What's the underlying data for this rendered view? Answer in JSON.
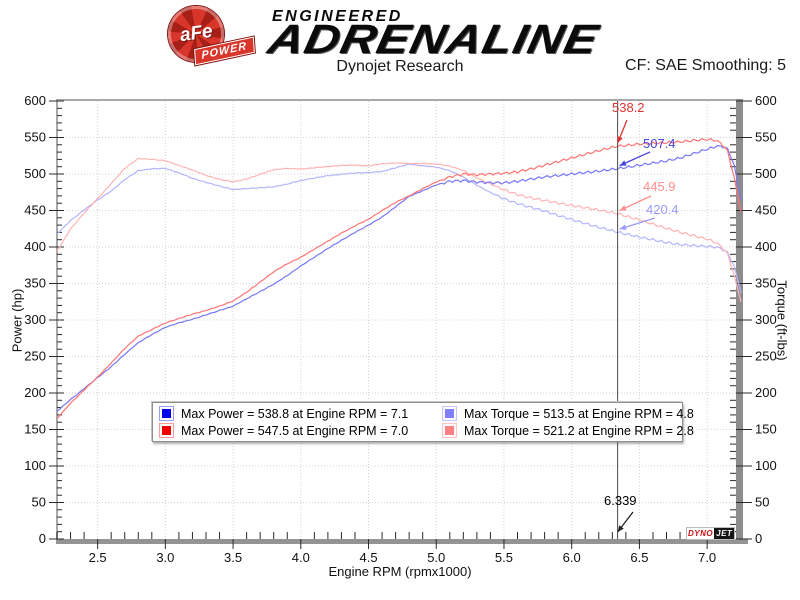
{
  "header": {
    "badge_line1": "aFe",
    "badge_line2": "POWER",
    "brand_engineered": "ENGINEERED",
    "brand_adrenaline": "ADRENALINE",
    "title": "Dynojet Research",
    "correction": "CF: SAE Smoothing: 5"
  },
  "chart_data": {
    "type": "line",
    "title": "Dynojet Research",
    "xlabel": "Engine RPM (rpmx1000)",
    "ylabel_left": "Power (hp)",
    "ylabel_right": "Torque (ft-lbs)",
    "xlim": [
      2.2,
      7.25
    ],
    "ylim": [
      0,
      600
    ],
    "x_major_ticks": [
      2.5,
      3.0,
      3.5,
      4.0,
      4.5,
      5.0,
      5.5,
      6.0,
      6.5,
      7.0
    ],
    "x_minor_step": 0.1,
    "y_major_ticks": [
      0,
      50,
      100,
      150,
      200,
      250,
      300,
      350,
      400,
      450,
      500,
      550,
      600
    ],
    "y_minor_step": 10,
    "grid": "dotted-major",
    "legend_position": "bottom-center",
    "cursor": {
      "rpm": 6.339,
      "label": "6.339"
    },
    "callouts": [
      {
        "label": "538.2",
        "value": 538.2,
        "series": "power_red",
        "color": "#e03232"
      },
      {
        "label": "507.4",
        "value": 507.4,
        "series": "power_blue",
        "color": "#4747dd"
      },
      {
        "label": "445.9",
        "value": 445.9,
        "series": "torque_red",
        "color": "#ff8d8d"
      },
      {
        "label": "420.4",
        "value": 420.4,
        "series": "torque_blue",
        "color": "#9a9aff"
      }
    ],
    "legend": [
      {
        "swatch": "#0000ee",
        "border": "#9a9aff",
        "text": "Max Power = 538.8 at Engine RPM = 7.1"
      },
      {
        "swatch": "#ee0000",
        "border": "#ff9a9a",
        "text": "Max Power = 547.5 at Engine RPM = 7.0"
      },
      {
        "swatch": "#8080ff",
        "border": "#c3c3ff",
        "text": "Max Torque = 513.5 at Engine RPM = 4.8"
      },
      {
        "swatch": "#ff8080",
        "border": "#ffc3c3",
        "text": "Max Torque = 521.2 at Engine RPM = 2.8"
      }
    ],
    "series": [
      {
        "id": "torque_blue",
        "color": "#b4b4ff",
        "axis": "torque",
        "ripple_from": 5.45,
        "points": [
          [
            2.2,
            417.8
          ],
          [
            2.3,
            436.2
          ],
          [
            2.4,
            450.8
          ],
          [
            2.5,
            464.3
          ],
          [
            2.6,
            476.7
          ],
          [
            2.7,
            492.2
          ],
          [
            2.8,
            504.6
          ],
          [
            2.9,
            507.1
          ],
          [
            3.0,
            507.7
          ],
          [
            3.1,
            501.5
          ],
          [
            3.2,
            494.1
          ],
          [
            3.3,
            488.6
          ],
          [
            3.4,
            483.5
          ],
          [
            3.5,
            478.7
          ],
          [
            3.6,
            480.0
          ],
          [
            3.7,
            481.2
          ],
          [
            3.8,
            482.4
          ],
          [
            3.9,
            486.2
          ],
          [
            4.0,
            491.1
          ],
          [
            4.1,
            494.5
          ],
          [
            4.2,
            497.7
          ],
          [
            4.3,
            499.6
          ],
          [
            4.4,
            501.4
          ],
          [
            4.5,
            501.9
          ],
          [
            4.6,
            503.5
          ],
          [
            4.7,
            508.5
          ],
          [
            4.8,
            513.5
          ],
          [
            4.9,
            511.3
          ],
          [
            5.0,
            509.4
          ],
          [
            5.1,
            504.6
          ],
          [
            5.2,
            495.9
          ],
          [
            5.3,
            484.6
          ],
          [
            5.4,
            474.6
          ],
          [
            5.5,
            466.0
          ],
          [
            5.6,
            459.5
          ],
          [
            5.7,
            454.3
          ],
          [
            5.8,
            449.2
          ],
          [
            5.9,
            443.2
          ],
          [
            6.0,
            437.7
          ],
          [
            6.1,
            432.2
          ],
          [
            6.2,
            427.0
          ],
          [
            6.339,
            420.4
          ],
          [
            6.4,
            417.7
          ],
          [
            6.5,
            413.7
          ],
          [
            6.6,
            409.9
          ],
          [
            6.7,
            406.1
          ],
          [
            6.8,
            403.2
          ],
          [
            6.9,
            401.9
          ],
          [
            7.0,
            400.8
          ],
          [
            7.05,
            400.1
          ],
          [
            7.1,
            398.6
          ],
          [
            7.15,
            393.0
          ],
          [
            7.2,
            373.5
          ],
          [
            7.25,
            336.9
          ]
        ]
      },
      {
        "id": "torque_red",
        "color": "#ffb4b4",
        "axis": "torque",
        "ripple_from": 5.45,
        "points": [
          [
            2.2,
            393.9
          ],
          [
            2.3,
            424.7
          ],
          [
            2.4,
            446.4
          ],
          [
            2.5,
            466.4
          ],
          [
            2.6,
            486.8
          ],
          [
            2.7,
            507.7
          ],
          [
            2.8,
            521.2
          ],
          [
            2.9,
            520.1
          ],
          [
            3.0,
            518.2
          ],
          [
            3.1,
            511.7
          ],
          [
            3.2,
            505.5
          ],
          [
            3.3,
            498.1
          ],
          [
            3.4,
            492.7
          ],
          [
            3.5,
            489.2
          ],
          [
            3.6,
            493.1
          ],
          [
            3.7,
            499.7
          ],
          [
            3.8,
            505.8
          ],
          [
            3.9,
            507.7
          ],
          [
            4.0,
            506.8
          ],
          [
            4.1,
            508.5
          ],
          [
            4.2,
            510.2
          ],
          [
            4.3,
            511.8
          ],
          [
            4.4,
            512.1
          ],
          [
            4.5,
            511.2
          ],
          [
            4.6,
            513.8
          ],
          [
            4.7,
            515.2
          ],
          [
            4.8,
            514.3
          ],
          [
            4.9,
            514.5
          ],
          [
            5.0,
            513.6
          ],
          [
            5.1,
            510.8
          ],
          [
            5.2,
            505.0
          ],
          [
            5.3,
            494.5
          ],
          [
            5.4,
            486.4
          ],
          [
            5.5,
            478.4
          ],
          [
            5.6,
            471.7
          ],
          [
            5.7,
            467.2
          ],
          [
            5.8,
            463.7
          ],
          [
            5.9,
            460.2
          ],
          [
            6.0,
            456.9
          ],
          [
            6.1,
            453.8
          ],
          [
            6.2,
            450.7
          ],
          [
            6.339,
            445.9
          ],
          [
            6.4,
            442.3
          ],
          [
            6.5,
            437.2
          ],
          [
            6.6,
            431.3
          ],
          [
            6.7,
            425.7
          ],
          [
            6.8,
            420.2
          ],
          [
            6.9,
            415.6
          ],
          [
            7.0,
            410.8
          ],
          [
            7.05,
            407.2
          ],
          [
            7.1,
            401.7
          ],
          [
            7.15,
            390.8
          ],
          [
            7.2,
            361.1
          ],
          [
            7.25,
            324.6
          ]
        ]
      },
      {
        "id": "power_blue",
        "color": "#7878f6",
        "axis": "power",
        "ripple_from": 5.05,
        "points": [
          [
            2.2,
            175
          ],
          [
            2.3,
            191
          ],
          [
            2.4,
            206
          ],
          [
            2.5,
            221
          ],
          [
            2.6,
            236
          ],
          [
            2.7,
            253
          ],
          [
            2.8,
            269
          ],
          [
            2.9,
            280
          ],
          [
            3.0,
            290
          ],
          [
            3.1,
            296
          ],
          [
            3.2,
            301
          ],
          [
            3.3,
            307
          ],
          [
            3.4,
            313
          ],
          [
            3.5,
            319
          ],
          [
            3.6,
            329
          ],
          [
            3.7,
            339
          ],
          [
            3.8,
            349
          ],
          [
            3.9,
            361
          ],
          [
            4.0,
            374
          ],
          [
            4.1,
            386
          ],
          [
            4.2,
            398
          ],
          [
            4.3,
            409
          ],
          [
            4.4,
            420
          ],
          [
            4.5,
            430
          ],
          [
            4.6,
            441
          ],
          [
            4.7,
            455
          ],
          [
            4.8,
            469.3
          ],
          [
            4.9,
            477
          ],
          [
            5.0,
            485
          ],
          [
            5.1,
            490
          ],
          [
            5.2,
            491
          ],
          [
            5.3,
            489
          ],
          [
            5.4,
            488
          ],
          [
            5.5,
            488
          ],
          [
            5.6,
            490
          ],
          [
            5.7,
            493
          ],
          [
            5.8,
            496
          ],
          [
            5.9,
            498
          ],
          [
            6.0,
            500
          ],
          [
            6.1,
            502
          ],
          [
            6.2,
            504
          ],
          [
            6.339,
            507.4
          ],
          [
            6.4,
            509
          ],
          [
            6.5,
            512
          ],
          [
            6.6,
            515
          ],
          [
            6.7,
            518
          ],
          [
            6.8,
            522
          ],
          [
            6.9,
            528
          ],
          [
            7.0,
            534
          ],
          [
            7.05,
            537
          ],
          [
            7.1,
            538.8
          ],
          [
            7.15,
            535
          ],
          [
            7.2,
            512
          ],
          [
            7.25,
            465
          ]
        ]
      },
      {
        "id": "power_red",
        "color": "#ff7474",
        "axis": "power",
        "ripple_from": 5.05,
        "points": [
          [
            2.2,
            165
          ],
          [
            2.3,
            186
          ],
          [
            2.4,
            204
          ],
          [
            2.5,
            222
          ],
          [
            2.6,
            241
          ],
          [
            2.7,
            261
          ],
          [
            2.8,
            277.9
          ],
          [
            2.9,
            287
          ],
          [
            3.0,
            296
          ],
          [
            3.1,
            302
          ],
          [
            3.2,
            308
          ],
          [
            3.3,
            313
          ],
          [
            3.4,
            319
          ],
          [
            3.5,
            326
          ],
          [
            3.6,
            338
          ],
          [
            3.7,
            352
          ],
          [
            3.8,
            366
          ],
          [
            3.9,
            377
          ],
          [
            4.0,
            386
          ],
          [
            4.1,
            397
          ],
          [
            4.2,
            408
          ],
          [
            4.3,
            419
          ],
          [
            4.4,
            429
          ],
          [
            4.5,
            438
          ],
          [
            4.6,
            450
          ],
          [
            4.7,
            461
          ],
          [
            4.8,
            470
          ],
          [
            4.9,
            480
          ],
          [
            5.0,
            489
          ],
          [
            5.1,
            496
          ],
          [
            5.2,
            500
          ],
          [
            5.3,
            499
          ],
          [
            5.4,
            500
          ],
          [
            5.5,
            501
          ],
          [
            5.6,
            503
          ],
          [
            5.7,
            507
          ],
          [
            5.8,
            512
          ],
          [
            5.9,
            517
          ],
          [
            6.0,
            522
          ],
          [
            6.1,
            527
          ],
          [
            6.2,
            532
          ],
          [
            6.339,
            538.2
          ],
          [
            6.4,
            539
          ],
          [
            6.5,
            541
          ],
          [
            6.6,
            542
          ],
          [
            6.7,
            543
          ],
          [
            6.8,
            544
          ],
          [
            6.9,
            546
          ],
          [
            7.0,
            547.5
          ],
          [
            7.05,
            546.5
          ],
          [
            7.1,
            543
          ],
          [
            7.15,
            532
          ],
          [
            7.2,
            495
          ],
          [
            7.25,
            448
          ]
        ]
      }
    ],
    "watermark": {
      "part1": "DYNO",
      "part2": "JET"
    }
  }
}
